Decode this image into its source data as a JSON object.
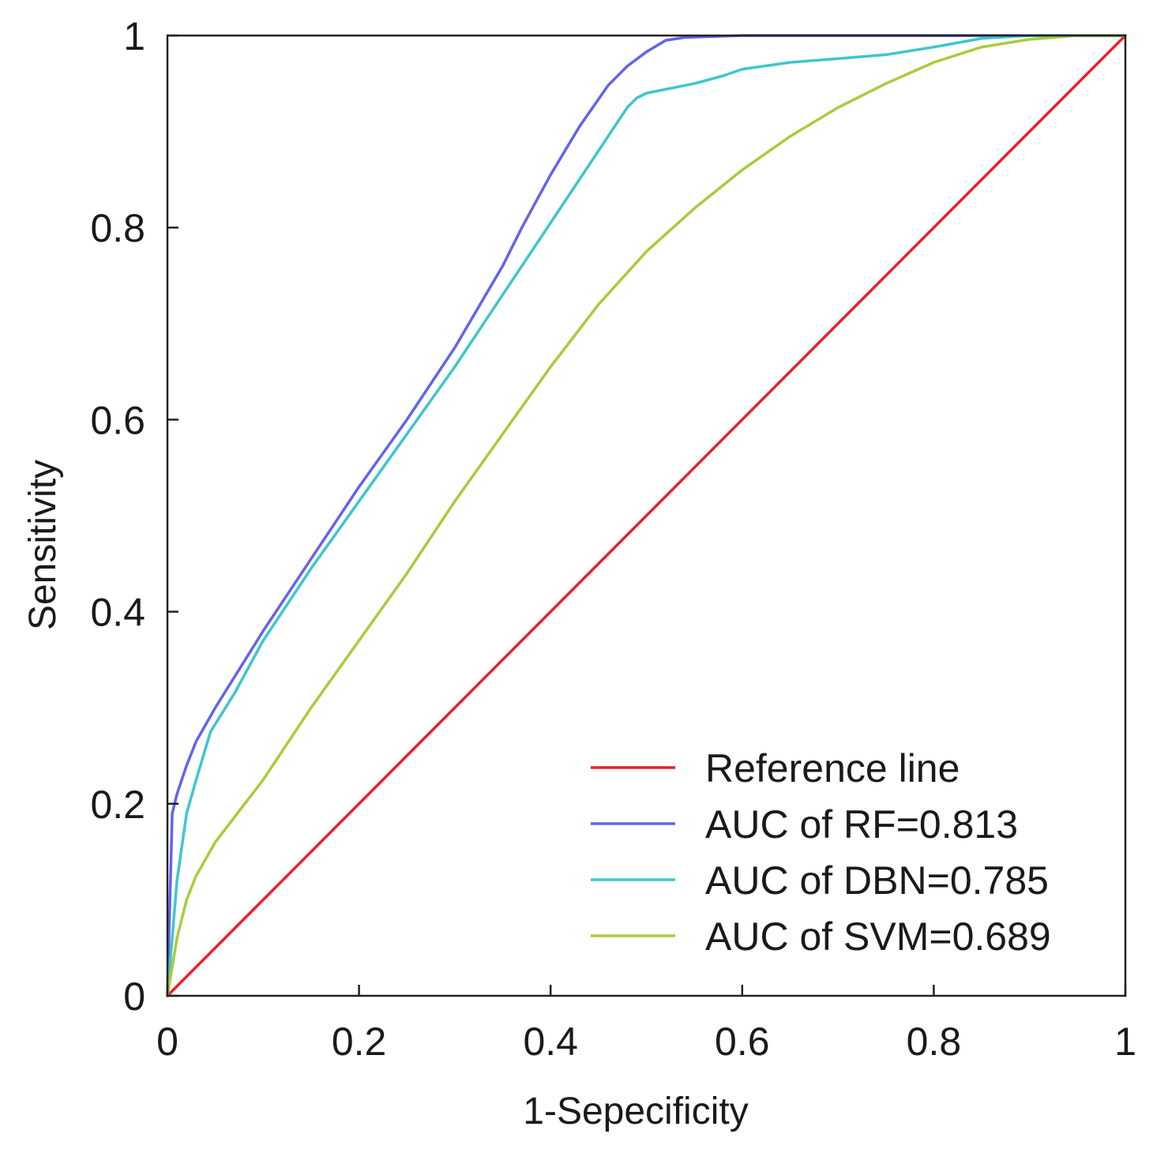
{
  "chart_data": {
    "type": "line",
    "title": "",
    "xlabel": "1-Sepecificity",
    "ylabel": "Sensitivity",
    "xlim": [
      0,
      1
    ],
    "ylim": [
      0,
      1
    ],
    "grid": false,
    "legend_position": "bottom-right",
    "x_ticks": [
      {
        "value": 0,
        "label": "0"
      },
      {
        "value": 0.2,
        "label": "0.2"
      },
      {
        "value": 0.4,
        "label": "0.4"
      },
      {
        "value": 0.6,
        "label": "0.6"
      },
      {
        "value": 0.8,
        "label": "0.8"
      },
      {
        "value": 1,
        "label": "1"
      }
    ],
    "y_ticks": [
      {
        "value": 0,
        "label": "0"
      },
      {
        "value": 0.2,
        "label": "0.2"
      },
      {
        "value": 0.4,
        "label": "0.4"
      },
      {
        "value": 0.6,
        "label": "0.6"
      },
      {
        "value": 0.8,
        "label": "0.8"
      },
      {
        "value": 1,
        "label": "1"
      }
    ],
    "series": [
      {
        "key": "reference",
        "name": "Reference line",
        "color": "#e8202a",
        "x": [
          0,
          1
        ],
        "y": [
          0,
          1
        ]
      },
      {
        "key": "rf",
        "name": "AUC of RF=0.813",
        "color": "#6363ee",
        "x": [
          0,
          0.005,
          0.01,
          0.02,
          0.03,
          0.05,
          0.1,
          0.15,
          0.2,
          0.25,
          0.3,
          0.35,
          0.37,
          0.4,
          0.43,
          0.46,
          0.48,
          0.5,
          0.52,
          0.54,
          0.6,
          0.7,
          0.8,
          0.9,
          1
        ],
        "y": [
          0,
          0.19,
          0.21,
          0.24,
          0.265,
          0.3,
          0.38,
          0.455,
          0.53,
          0.6,
          0.675,
          0.76,
          0.8,
          0.855,
          0.905,
          0.948,
          0.968,
          0.983,
          0.995,
          0.998,
          1,
          1,
          1,
          1,
          1
        ]
      },
      {
        "key": "dbn",
        "name": "AUC of DBN=0.785",
        "color": "#3ec6cc",
        "x": [
          0,
          0.01,
          0.02,
          0.03,
          0.045,
          0.07,
          0.1,
          0.15,
          0.2,
          0.25,
          0.3,
          0.35,
          0.4,
          0.45,
          0.48,
          0.49,
          0.5,
          0.55,
          0.58,
          0.6,
          0.65,
          0.7,
          0.75,
          0.8,
          0.85,
          0.9,
          1
        ],
        "y": [
          0,
          0.12,
          0.19,
          0.225,
          0.275,
          0.315,
          0.37,
          0.445,
          0.515,
          0.585,
          0.655,
          0.73,
          0.805,
          0.88,
          0.925,
          0.935,
          0.94,
          0.95,
          0.958,
          0.965,
          0.972,
          0.976,
          0.98,
          0.988,
          0.997,
          1,
          1
        ]
      },
      {
        "key": "svm",
        "name": "AUC of SVM=0.689",
        "color": "#a8cc3c",
        "x": [
          0,
          0.01,
          0.02,
          0.03,
          0.05,
          0.1,
          0.15,
          0.2,
          0.25,
          0.3,
          0.35,
          0.4,
          0.45,
          0.5,
          0.55,
          0.6,
          0.65,
          0.7,
          0.75,
          0.8,
          0.85,
          0.9,
          0.95,
          1
        ],
        "y": [
          0,
          0.06,
          0.1,
          0.125,
          0.16,
          0.225,
          0.3,
          0.37,
          0.44,
          0.515,
          0.585,
          0.655,
          0.72,
          0.775,
          0.82,
          0.86,
          0.895,
          0.925,
          0.95,
          0.972,
          0.988,
          0.996,
          1,
          1
        ]
      }
    ]
  }
}
